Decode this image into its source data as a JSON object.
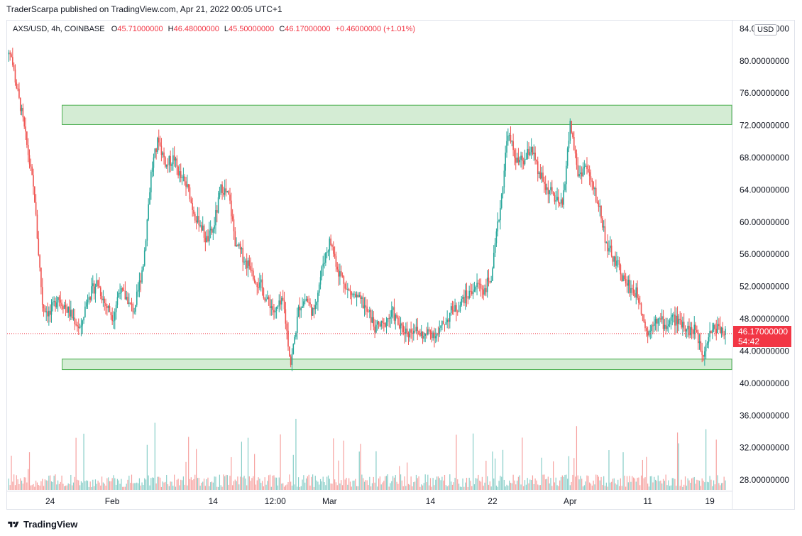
{
  "header": {
    "publisher_line": "TraderScarpa published on TradingView.com, Apr 21, 2022 00:05 UTC+1"
  },
  "legend": {
    "symbol": "AXS/USD, 4h, COINBASE",
    "open_label": "O",
    "open": "45.71000000",
    "high_label": "H",
    "high": "46.48000000",
    "low_label": "L",
    "low": "45.50000000",
    "close_label": "C",
    "close": "46.17000000",
    "change": "+0.46000000 (+1.01%)"
  },
  "price_scale": {
    "currency": "USD",
    "last_price": "46.17000000",
    "countdown": "54:42"
  },
  "footer": {
    "brand": "TradingView"
  },
  "colors": {
    "up": "#26a69a",
    "down": "#ef5350",
    "zone_fill": "#d4ecd4",
    "zone_stroke": "#4caf50",
    "last_price": "#f23645"
  },
  "chart_data": {
    "type": "candlestick",
    "symbol": "AXS/USD",
    "timeframe": "4h",
    "exchange": "COINBASE",
    "y_axis_ticks": [
      "84.00000000",
      "80.00000000",
      "76.00000000",
      "72.00000000",
      "68.00000000",
      "64.00000000",
      "60.00000000",
      "56.00000000",
      "52.00000000",
      "48.00000000",
      "44.00000000",
      "40.00000000",
      "36.00000000",
      "32.00000000",
      "28.00000000"
    ],
    "y_axis_values": [
      84,
      80,
      76,
      72,
      68,
      64,
      60,
      56,
      52,
      48,
      44,
      40,
      36,
      32,
      28
    ],
    "ylim": [
      26.6,
      85.0
    ],
    "x_axis_ticks": [
      "24",
      "Feb",
      "14",
      "12:00",
      "Mar",
      "14",
      "22",
      "Apr",
      "11",
      "19"
    ],
    "x_axis_tick_dates": [
      "Jan 24",
      "Feb 1",
      "Feb 14",
      "Feb 22 12:00",
      "Mar 1",
      "Mar 14",
      "Mar 22",
      "Apr 1",
      "Apr 11",
      "Apr 19"
    ],
    "last_price": 46.17,
    "zones": [
      {
        "type": "resistance",
        "from": 72.1,
        "to": 74.5,
        "start": "Jan 26",
        "end": "Apr 21"
      },
      {
        "type": "support",
        "from": 41.7,
        "to": 43.0,
        "start": "Jan 26",
        "end": "Apr 21"
      }
    ],
    "price_path_daily_close": [
      {
        "date": "Jan 19",
        "close": 80.5
      },
      {
        "date": "Jan 20",
        "close": 75.0
      },
      {
        "date": "Jan 21",
        "close": 69.5
      },
      {
        "date": "Jan 22",
        "close": 63.0
      },
      {
        "date": "Jan 23",
        "close": 50.0
      },
      {
        "date": "Jan 24",
        "close": 48.5
      },
      {
        "date": "Jan 25",
        "close": 51.0
      },
      {
        "date": "Jan 26",
        "close": 49.5
      },
      {
        "date": "Jan 27",
        "close": 48.0
      },
      {
        "date": "Jan 28",
        "close": 46.5
      },
      {
        "date": "Jan 29",
        "close": 51.5
      },
      {
        "date": "Jan 30",
        "close": 52.5
      },
      {
        "date": "Jan 31",
        "close": 50.0
      },
      {
        "date": "Feb 1",
        "close": 48.5
      },
      {
        "date": "Feb 2",
        "close": 52.0
      },
      {
        "date": "Feb 3",
        "close": 50.5
      },
      {
        "date": "Feb 4",
        "close": 49.0
      },
      {
        "date": "Feb 5",
        "close": 55.0
      },
      {
        "date": "Feb 6",
        "close": 66.0
      },
      {
        "date": "Feb 7",
        "close": 70.5
      },
      {
        "date": "Feb 8",
        "close": 67.0
      },
      {
        "date": "Feb 9",
        "close": 68.0
      },
      {
        "date": "Feb 10",
        "close": 65.0
      },
      {
        "date": "Feb 11",
        "close": 63.5
      },
      {
        "date": "Feb 12",
        "close": 60.0
      },
      {
        "date": "Feb 13",
        "close": 58.0
      },
      {
        "date": "Feb 14",
        "close": 59.0
      },
      {
        "date": "Feb 15",
        "close": 64.0
      },
      {
        "date": "Feb 16",
        "close": 63.0
      },
      {
        "date": "Feb 17",
        "close": 56.5
      },
      {
        "date": "Feb 18",
        "close": 55.5
      },
      {
        "date": "Feb 19",
        "close": 54.5
      },
      {
        "date": "Feb 20",
        "close": 52.0
      },
      {
        "date": "Feb 21",
        "close": 50.0
      },
      {
        "date": "Feb 22",
        "close": 48.5
      },
      {
        "date": "Feb 23",
        "close": 50.0
      },
      {
        "date": "Feb 24",
        "close": 42.5
      },
      {
        "date": "Feb 25",
        "close": 49.0
      },
      {
        "date": "Feb 26",
        "close": 50.5
      },
      {
        "date": "Feb 27",
        "close": 48.5
      },
      {
        "date": "Feb 28",
        "close": 54.0
      },
      {
        "date": "Mar 1",
        "close": 57.5
      },
      {
        "date": "Mar 2",
        "close": 54.5
      },
      {
        "date": "Mar 3",
        "close": 52.5
      },
      {
        "date": "Mar 4",
        "close": 51.0
      },
      {
        "date": "Mar 5",
        "close": 50.0
      },
      {
        "date": "Mar 6",
        "close": 48.5
      },
      {
        "date": "Mar 7",
        "close": 46.5
      },
      {
        "date": "Mar 8",
        "close": 47.0
      },
      {
        "date": "Mar 9",
        "close": 48.5
      },
      {
        "date": "Mar 10",
        "close": 47.0
      },
      {
        "date": "Mar 11",
        "close": 46.5
      },
      {
        "date": "Mar 12",
        "close": 47.0
      },
      {
        "date": "Mar 13",
        "close": 46.0
      },
      {
        "date": "Mar 14",
        "close": 46.5
      },
      {
        "date": "Mar 15",
        "close": 46.0
      },
      {
        "date": "Mar 16",
        "close": 48.0
      },
      {
        "date": "Mar 17",
        "close": 49.5
      },
      {
        "date": "Mar 18",
        "close": 50.0
      },
      {
        "date": "Mar 19",
        "close": 51.0
      },
      {
        "date": "Mar 20",
        "close": 52.0
      },
      {
        "date": "Mar 21",
        "close": 51.5
      },
      {
        "date": "Mar 22",
        "close": 53.5
      },
      {
        "date": "Mar 23",
        "close": 62.0
      },
      {
        "date": "Mar 24",
        "close": 71.5
      },
      {
        "date": "Mar 25",
        "close": 68.0
      },
      {
        "date": "Mar 26",
        "close": 67.5
      },
      {
        "date": "Mar 27",
        "close": 69.5
      },
      {
        "date": "Mar 28",
        "close": 65.5
      },
      {
        "date": "Mar 29",
        "close": 64.0
      },
      {
        "date": "Mar 30",
        "close": 63.0
      },
      {
        "date": "Mar 31",
        "close": 62.0
      },
      {
        "date": "Apr 1",
        "close": 72.0
      },
      {
        "date": "Apr 2",
        "close": 66.0
      },
      {
        "date": "Apr 3",
        "close": 67.0
      },
      {
        "date": "Apr 4",
        "close": 64.0
      },
      {
        "date": "Apr 5",
        "close": 61.0
      },
      {
        "date": "Apr 6",
        "close": 56.0
      },
      {
        "date": "Apr 7",
        "close": 54.5
      },
      {
        "date": "Apr 8",
        "close": 52.5
      },
      {
        "date": "Apr 9",
        "close": 51.5
      },
      {
        "date": "Apr 10",
        "close": 50.5
      },
      {
        "date": "Apr 11",
        "close": 46.0
      },
      {
        "date": "Apr 12",
        "close": 48.5
      },
      {
        "date": "Apr 13",
        "close": 47.5
      },
      {
        "date": "Apr 14",
        "close": 48.0
      },
      {
        "date": "Apr 15",
        "close": 47.5
      },
      {
        "date": "Apr 16",
        "close": 47.0
      },
      {
        "date": "Apr 17",
        "close": 46.5
      },
      {
        "date": "Apr 18",
        "close": 44.0
      },
      {
        "date": "Apr 19",
        "close": 46.5
      },
      {
        "date": "Apr 20",
        "close": 47.0
      },
      {
        "date": "Apr 21",
        "close": 46.17
      }
    ]
  }
}
